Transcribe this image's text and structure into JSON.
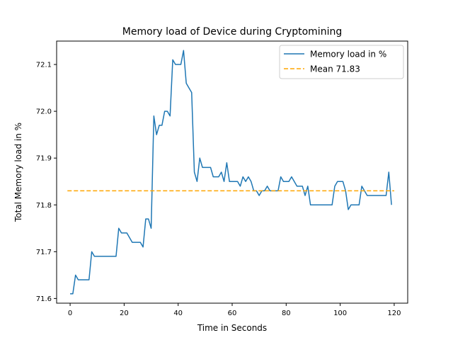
{
  "chart_data": {
    "type": "line",
    "title": "Memory load of Device during Cryptomining",
    "xlabel": "Time in Seconds",
    "ylabel": "Total Memory load in %",
    "xlim": [
      -5,
      125
    ],
    "ylim": [
      71.59,
      72.15
    ],
    "xticks": [
      0,
      20,
      40,
      60,
      80,
      100,
      120
    ],
    "yticks": [
      71.6,
      71.7,
      71.8,
      71.9,
      72.0,
      72.1
    ],
    "grid": false,
    "legend_position": "top-right",
    "series": [
      {
        "name": "Memory load in %",
        "color": "#1f77b4",
        "style": "solid",
        "x": [
          0,
          1,
          2,
          3,
          4,
          5,
          6,
          7,
          8,
          9,
          10,
          11,
          12,
          13,
          14,
          15,
          16,
          17,
          18,
          19,
          20,
          21,
          22,
          23,
          24,
          25,
          26,
          27,
          28,
          29,
          30,
          31,
          32,
          33,
          34,
          35,
          36,
          37,
          38,
          39,
          40,
          41,
          42,
          43,
          44,
          45,
          46,
          47,
          48,
          49,
          50,
          51,
          52,
          53,
          54,
          55,
          56,
          57,
          58,
          59,
          60,
          61,
          62,
          63,
          64,
          65,
          66,
          67,
          68,
          69,
          70,
          71,
          72,
          73,
          74,
          75,
          76,
          77,
          78,
          79,
          80,
          81,
          82,
          83,
          84,
          85,
          86,
          87,
          88,
          89,
          90,
          91,
          92,
          93,
          94,
          95,
          96,
          97,
          98,
          99,
          100,
          101,
          102,
          103,
          104,
          105,
          106,
          107,
          108,
          109,
          110,
          111,
          112,
          113,
          114,
          115,
          116,
          117,
          118,
          119
        ],
        "y": [
          71.61,
          71.61,
          71.65,
          71.64,
          71.64,
          71.64,
          71.64,
          71.64,
          71.7,
          71.69,
          71.69,
          71.69,
          71.69,
          71.69,
          71.69,
          71.69,
          71.69,
          71.69,
          71.75,
          71.74,
          71.74,
          71.74,
          71.73,
          71.72,
          71.72,
          71.72,
          71.72,
          71.71,
          71.77,
          71.77,
          71.75,
          71.99,
          71.95,
          71.97,
          71.97,
          72.0,
          72.0,
          71.99,
          72.11,
          72.1,
          72.1,
          72.1,
          72.13,
          72.06,
          72.05,
          72.04,
          71.87,
          71.85,
          71.9,
          71.88,
          71.88,
          71.88,
          71.88,
          71.86,
          71.86,
          71.86,
          71.87,
          71.85,
          71.89,
          71.85,
          71.85,
          71.85,
          71.85,
          71.84,
          71.86,
          71.85,
          71.86,
          71.85,
          71.83,
          71.83,
          71.82,
          71.83,
          71.83,
          71.84,
          71.83,
          71.83,
          71.83,
          71.83,
          71.86,
          71.85,
          71.85,
          71.85,
          71.86,
          71.85,
          71.84,
          71.84,
          71.84,
          71.82,
          71.84,
          71.8,
          71.8,
          71.8,
          71.8,
          71.8,
          71.8,
          71.8,
          71.8,
          71.8,
          71.84,
          71.85,
          71.85,
          71.85,
          71.83,
          71.79,
          71.8,
          71.8,
          71.8,
          71.8,
          71.84,
          71.83,
          71.82,
          71.82,
          71.82,
          71.82,
          71.82,
          71.82,
          71.82,
          71.82,
          71.87,
          71.8
        ]
      },
      {
        "name": "Mean 71.83",
        "color": "#ffa500",
        "style": "dashed",
        "x": [
          -1,
          120
        ],
        "y": [
          71.83,
          71.83
        ]
      }
    ]
  }
}
